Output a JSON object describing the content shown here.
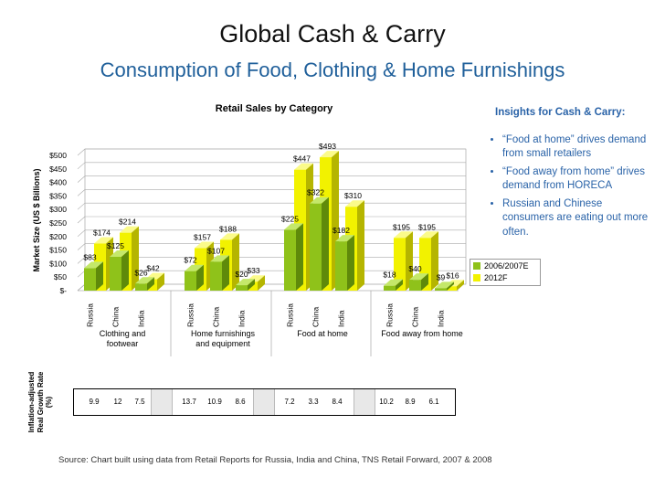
{
  "title": "Global Cash & Carry",
  "subtitle": "Consumption of Food, Clothing & Home Furnishings",
  "insights": {
    "heading": "Insights for Cash & Carry:",
    "bullets": [
      "“Food at home” drives demand from small retailers",
      "“Food away from home” drives demand from HORECA",
      "Russian and Chinese consumers are eating out more often."
    ]
  },
  "colors": {
    "series1": "#8fc21a",
    "series2": "#f2f200",
    "series1_dark": "#5f8a0a",
    "series2_dark": "#b5b500"
  },
  "growth": {
    "label": "Inflation-adjusted Real Growth Rate (%)",
    "values": [
      "9.9",
      "12",
      "7.5",
      "13.7",
      "10.9",
      "8.6",
      "7.2",
      "3.3",
      "8.4",
      "10.2",
      "8.9",
      "6.1"
    ]
  },
  "source": "Source: Chart built using data from Retail Reports for Russia, India and China, TNS Retail Forward, 2007 & 2008",
  "chart_data": {
    "type": "bar",
    "title": "Retail Sales by Category",
    "ylabel": "Market Size (US $ Billions)",
    "ylim": [
      0,
      500
    ],
    "yticks": [
      "$-",
      "$50",
      "$100",
      "$150",
      "$200",
      "$250",
      "$300",
      "$350",
      "$400",
      "$450",
      "$500"
    ],
    "groups": [
      "Clothing and footwear",
      "Home furnishings and equipment",
      "Food at home",
      "Food away from home"
    ],
    "categories": [
      "Russia",
      "China",
      "India"
    ],
    "series": [
      {
        "name": "2006/2007E",
        "values": [
          [
            83,
            125,
            26
          ],
          [
            72,
            107,
            20
          ],
          [
            225,
            322,
            182
          ],
          [
            18,
            40,
            9
          ]
        ]
      },
      {
        "name": "2012F",
        "values": [
          [
            174,
            214,
            42
          ],
          [
            157,
            188,
            33
          ],
          [
            447,
            493,
            310
          ],
          [
            195,
            195,
            16
          ]
        ]
      }
    ],
    "legend_position": "right"
  }
}
